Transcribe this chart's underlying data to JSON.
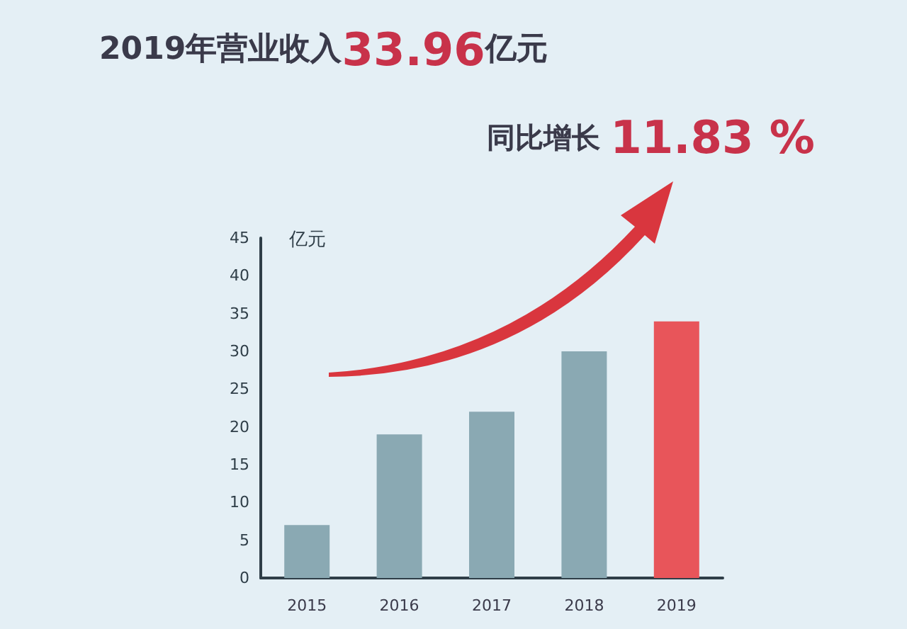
{
  "chart_data": {
    "type": "bar",
    "title": "2019年营业收入33.96亿元",
    "subtitle": "同比增长 11.83 %",
    "ylabel": "亿元",
    "categories": [
      "2015",
      "2016",
      "2017",
      "2018",
      "2019"
    ],
    "values": [
      7,
      19,
      22,
      30,
      33.96
    ],
    "colors": [
      "#8aa9b3",
      "#8aa9b3",
      "#8aa9b3",
      "#8aa9b3",
      "#e8555a"
    ],
    "ylim": [
      0,
      45
    ],
    "yticks": [
      0,
      5,
      10,
      15,
      20,
      25,
      30,
      35,
      40,
      45
    ],
    "grid": false
  }
}
